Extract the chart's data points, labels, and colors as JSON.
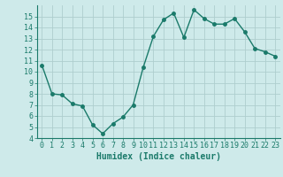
{
  "x": [
    0,
    1,
    2,
    3,
    4,
    5,
    6,
    7,
    8,
    9,
    10,
    11,
    12,
    13,
    14,
    15,
    16,
    17,
    18,
    19,
    20,
    21,
    22,
    23
  ],
  "y": [
    10.6,
    8.0,
    7.9,
    7.1,
    6.9,
    5.2,
    4.4,
    5.3,
    5.9,
    7.0,
    10.4,
    13.2,
    14.7,
    15.3,
    13.1,
    15.6,
    14.8,
    14.3,
    14.3,
    14.8,
    13.6,
    12.1,
    11.8,
    11.4
  ],
  "line_color": "#1a7a6a",
  "bg_color": "#ceeaea",
  "grid_color": "#aecece",
  "xlabel": "Humidex (Indice chaleur)",
  "ylim": [
    4,
    16
  ],
  "xlim": [
    -0.5,
    23.5
  ],
  "yticks": [
    4,
    5,
    6,
    7,
    8,
    9,
    10,
    11,
    12,
    13,
    14,
    15
  ],
  "xticks": [
    0,
    1,
    2,
    3,
    4,
    5,
    6,
    7,
    8,
    9,
    10,
    11,
    12,
    13,
    14,
    15,
    16,
    17,
    18,
    19,
    20,
    21,
    22,
    23
  ],
  "xlabel_fontsize": 7,
  "tick_fontsize": 6,
  "marker_size": 2.5,
  "line_width": 1.0
}
